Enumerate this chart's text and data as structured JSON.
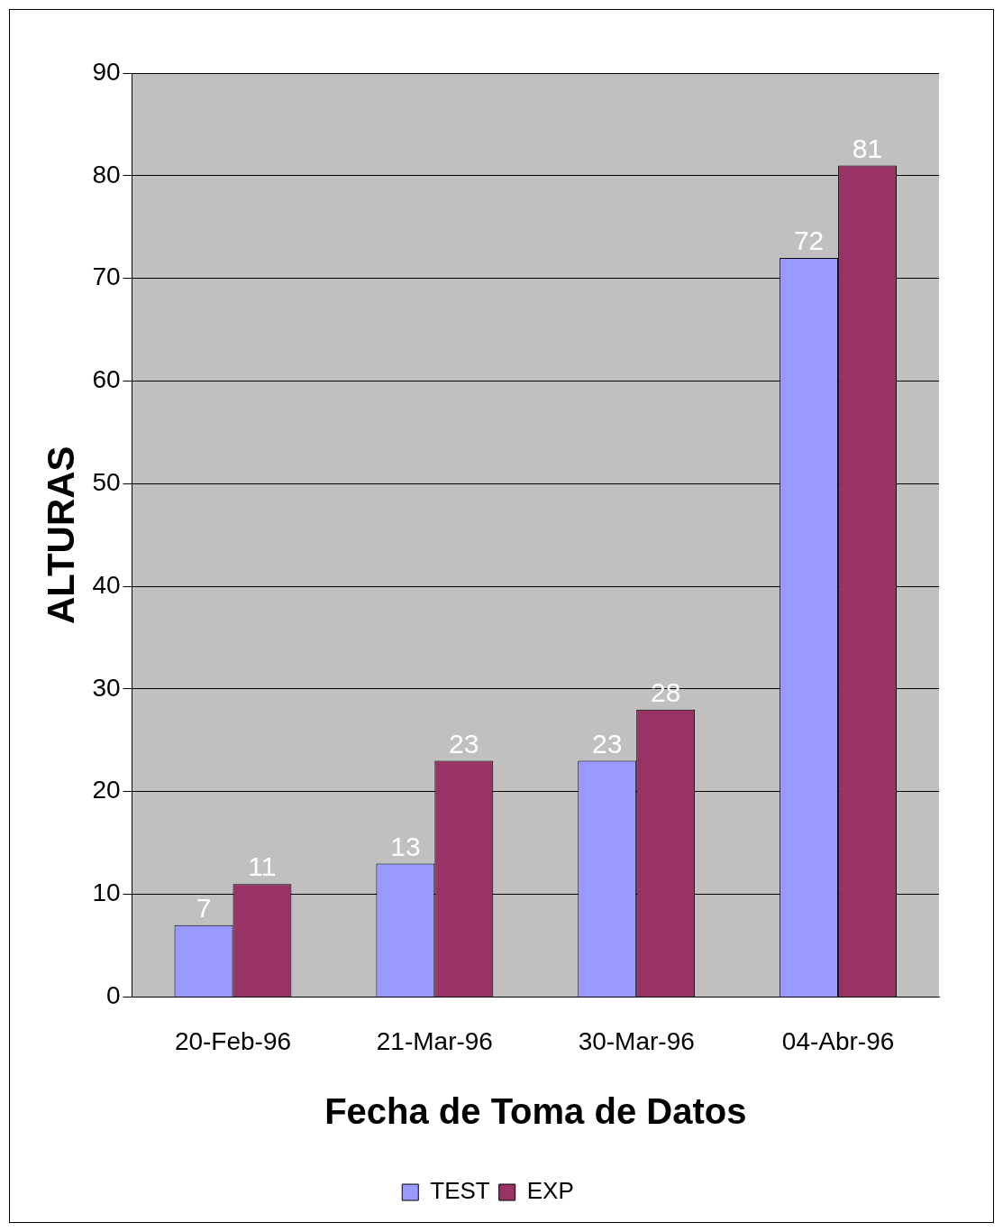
{
  "chart_data": {
    "type": "bar",
    "xlabel": "Fecha de Toma de Datos",
    "ylabel": "ALTURAS",
    "categories": [
      "20-Feb-96",
      "21-Mar-96",
      "30-Mar-96",
      "04-Abr-96"
    ],
    "series": [
      {
        "name": "TEST",
        "color": "#9999ff",
        "values": [
          7,
          13,
          23,
          72
        ]
      },
      {
        "name": "EXP",
        "color": "#993366",
        "values": [
          11,
          23,
          28,
          81
        ]
      }
    ],
    "ylim": [
      0,
      90
    ],
    "yticks": [
      0,
      10,
      20,
      30,
      40,
      50,
      60,
      70,
      80,
      90
    ],
    "grid": "y",
    "legend": "bottom",
    "data_labels": true
  }
}
